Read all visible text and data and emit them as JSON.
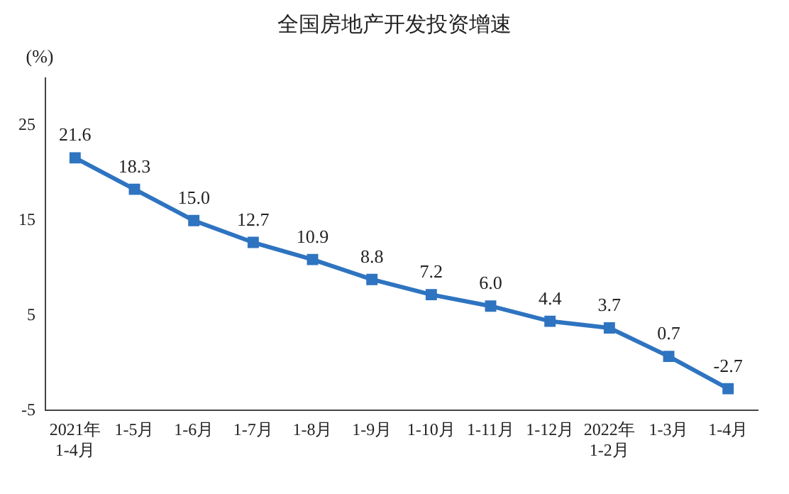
{
  "chart_data": {
    "type": "line",
    "title": "全国房地产开发投资增速",
    "ylabel": "(%)",
    "categories": [
      "2021年\n1-4月",
      "1-5月",
      "1-6月",
      "1-7月",
      "1-8月",
      "1-9月",
      "1-10月",
      "1-11月",
      "1-12月",
      "2022年\n1-2月",
      "1-3月",
      "1-4月"
    ],
    "series": [
      {
        "color": "#2e74c0",
        "values": [
          21.6,
          18.3,
          15.0,
          12.7,
          10.9,
          8.8,
          7.2,
          6.0,
          4.4,
          3.7,
          0.7,
          -2.7
        ],
        "value_labels": [
          "21.6",
          "18.3",
          "15.0",
          "12.7",
          "10.9",
          "8.8",
          "7.2",
          "6.0",
          "4.4",
          "3.7",
          "0.7",
          "-2.7"
        ]
      }
    ],
    "ylim": [
      -5,
      30
    ],
    "yticks": [
      -5,
      5,
      15,
      25
    ],
    "grid": false,
    "legend": false,
    "marker": "square",
    "line_style": "solid"
  }
}
